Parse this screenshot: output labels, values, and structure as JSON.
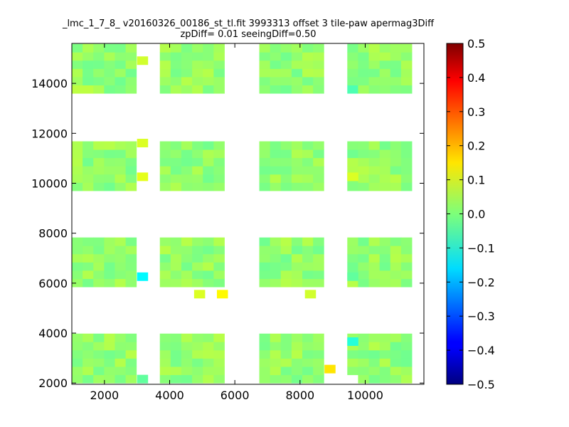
{
  "chart_data": {
    "type": "heatmap",
    "title_line1": "_lmc_1_7_8_ v20160326_00186_st_tl.fit 3993313 offset 3 tile-paw apermag3Diff",
    "title_line2": "zpDiff= 0.01 seeingDiff=0.50",
    "xlabel": "",
    "ylabel": "",
    "xlim": [
      1000,
      11800
    ],
    "ylim": [
      1950,
      15600
    ],
    "xticks": [
      2000,
      4000,
      6000,
      8000,
      10000
    ],
    "yticks": [
      2000,
      4000,
      6000,
      8000,
      10000,
      12000,
      14000
    ],
    "colorbar": {
      "colormap": "jet",
      "vmin": -0.5,
      "vmax": 0.5,
      "ticks": [
        0.5,
        0.4,
        0.3,
        0.2,
        0.1,
        0.0,
        -0.1,
        -0.2,
        -0.3,
        -0.4,
        -0.5
      ],
      "tick_labels": [
        "0.5",
        "0.4",
        "0.3",
        "0.2",
        "0.1",
        "0.0",
        "−0.1",
        "−0.2",
        "−0.3",
        "−0.4",
        "−0.5"
      ]
    },
    "cell_size": 330,
    "detector_columns_x": [
      1000,
      3700,
      6750,
      9450
    ],
    "detector_rows_y": [
      2000,
      5850,
      9700,
      13600
    ],
    "detector_cols_n": 6,
    "detector_rows_n": 6,
    "base_value": 0.02,
    "extra_cells": [
      {
        "x": 3000,
        "y": 14750,
        "v": 0.08
      },
      {
        "x": 3000,
        "y": 11450,
        "v": 0.09
      },
      {
        "x": 3000,
        "y": 10100,
        "v": 0.1
      },
      {
        "x": 3000,
        "y": 6100,
        "v": -0.13
      },
      {
        "x": 3000,
        "y": 2000,
        "v": -0.03
      },
      {
        "x": 4750,
        "y": 5400,
        "v": 0.09
      },
      {
        "x": 5450,
        "y": 5400,
        "v": 0.13
      },
      {
        "x": 8150,
        "y": 5400,
        "v": 0.08
      },
      {
        "x": 8750,
        "y": 2400,
        "v": 0.15
      },
      {
        "x": 9450,
        "y": 3500,
        "v": -0.09
      },
      {
        "x": 9450,
        "y": 10100,
        "v": 0.09
      },
      {
        "x": 9450,
        "y": 6100,
        "v": -0.03
      }
    ],
    "missing_cells": [
      {
        "x": 3000,
        "y": 14100
      },
      {
        "x": 3000,
        "y": 13750
      },
      {
        "x": 8750,
        "y": 14800
      },
      {
        "x": 8750,
        "y": 13600
      },
      {
        "x": 8750,
        "y": 7550
      },
      {
        "x": 9450,
        "y": 14800
      },
      {
        "x": 9450,
        "y": 7550
      },
      {
        "x": 9450,
        "y": 2000
      },
      {
        "x": 9800,
        "y": 2000
      },
      {
        "x": 10450,
        "y": 2000
      },
      {
        "x": 3700,
        "y": 14800
      },
      {
        "x": 3700,
        "y": 11450
      },
      {
        "x": 3700,
        "y": 10100
      }
    ],
    "highlight_cells": [
      {
        "x": 1000,
        "y": 13600,
        "v": 0.06
      },
      {
        "x": 1330,
        "y": 13600,
        "v": 0.06
      },
      {
        "x": 1660,
        "y": 14450,
        "v": 0.07
      },
      {
        "x": 3700,
        "y": 14100,
        "v": 0.07
      },
      {
        "x": 3700,
        "y": 7100,
        "v": 0.06
      },
      {
        "x": 3700,
        "y": 3700,
        "v": 0.06
      },
      {
        "x": 5700,
        "y": 10400,
        "v": -0.08
      },
      {
        "x": 5700,
        "y": 2000,
        "v": 0.05
      },
      {
        "x": 6750,
        "y": 14100,
        "v": 0.06
      },
      {
        "x": 8150,
        "y": 2000,
        "v": 0.05
      },
      {
        "x": 8450,
        "y": 11450,
        "v": -0.03
      },
      {
        "x": 8750,
        "y": 14450,
        "v": -0.05
      },
      {
        "x": 9450,
        "y": 13600,
        "v": -0.05
      },
      {
        "x": 11450,
        "y": 7550,
        "v": 0.05
      }
    ]
  }
}
